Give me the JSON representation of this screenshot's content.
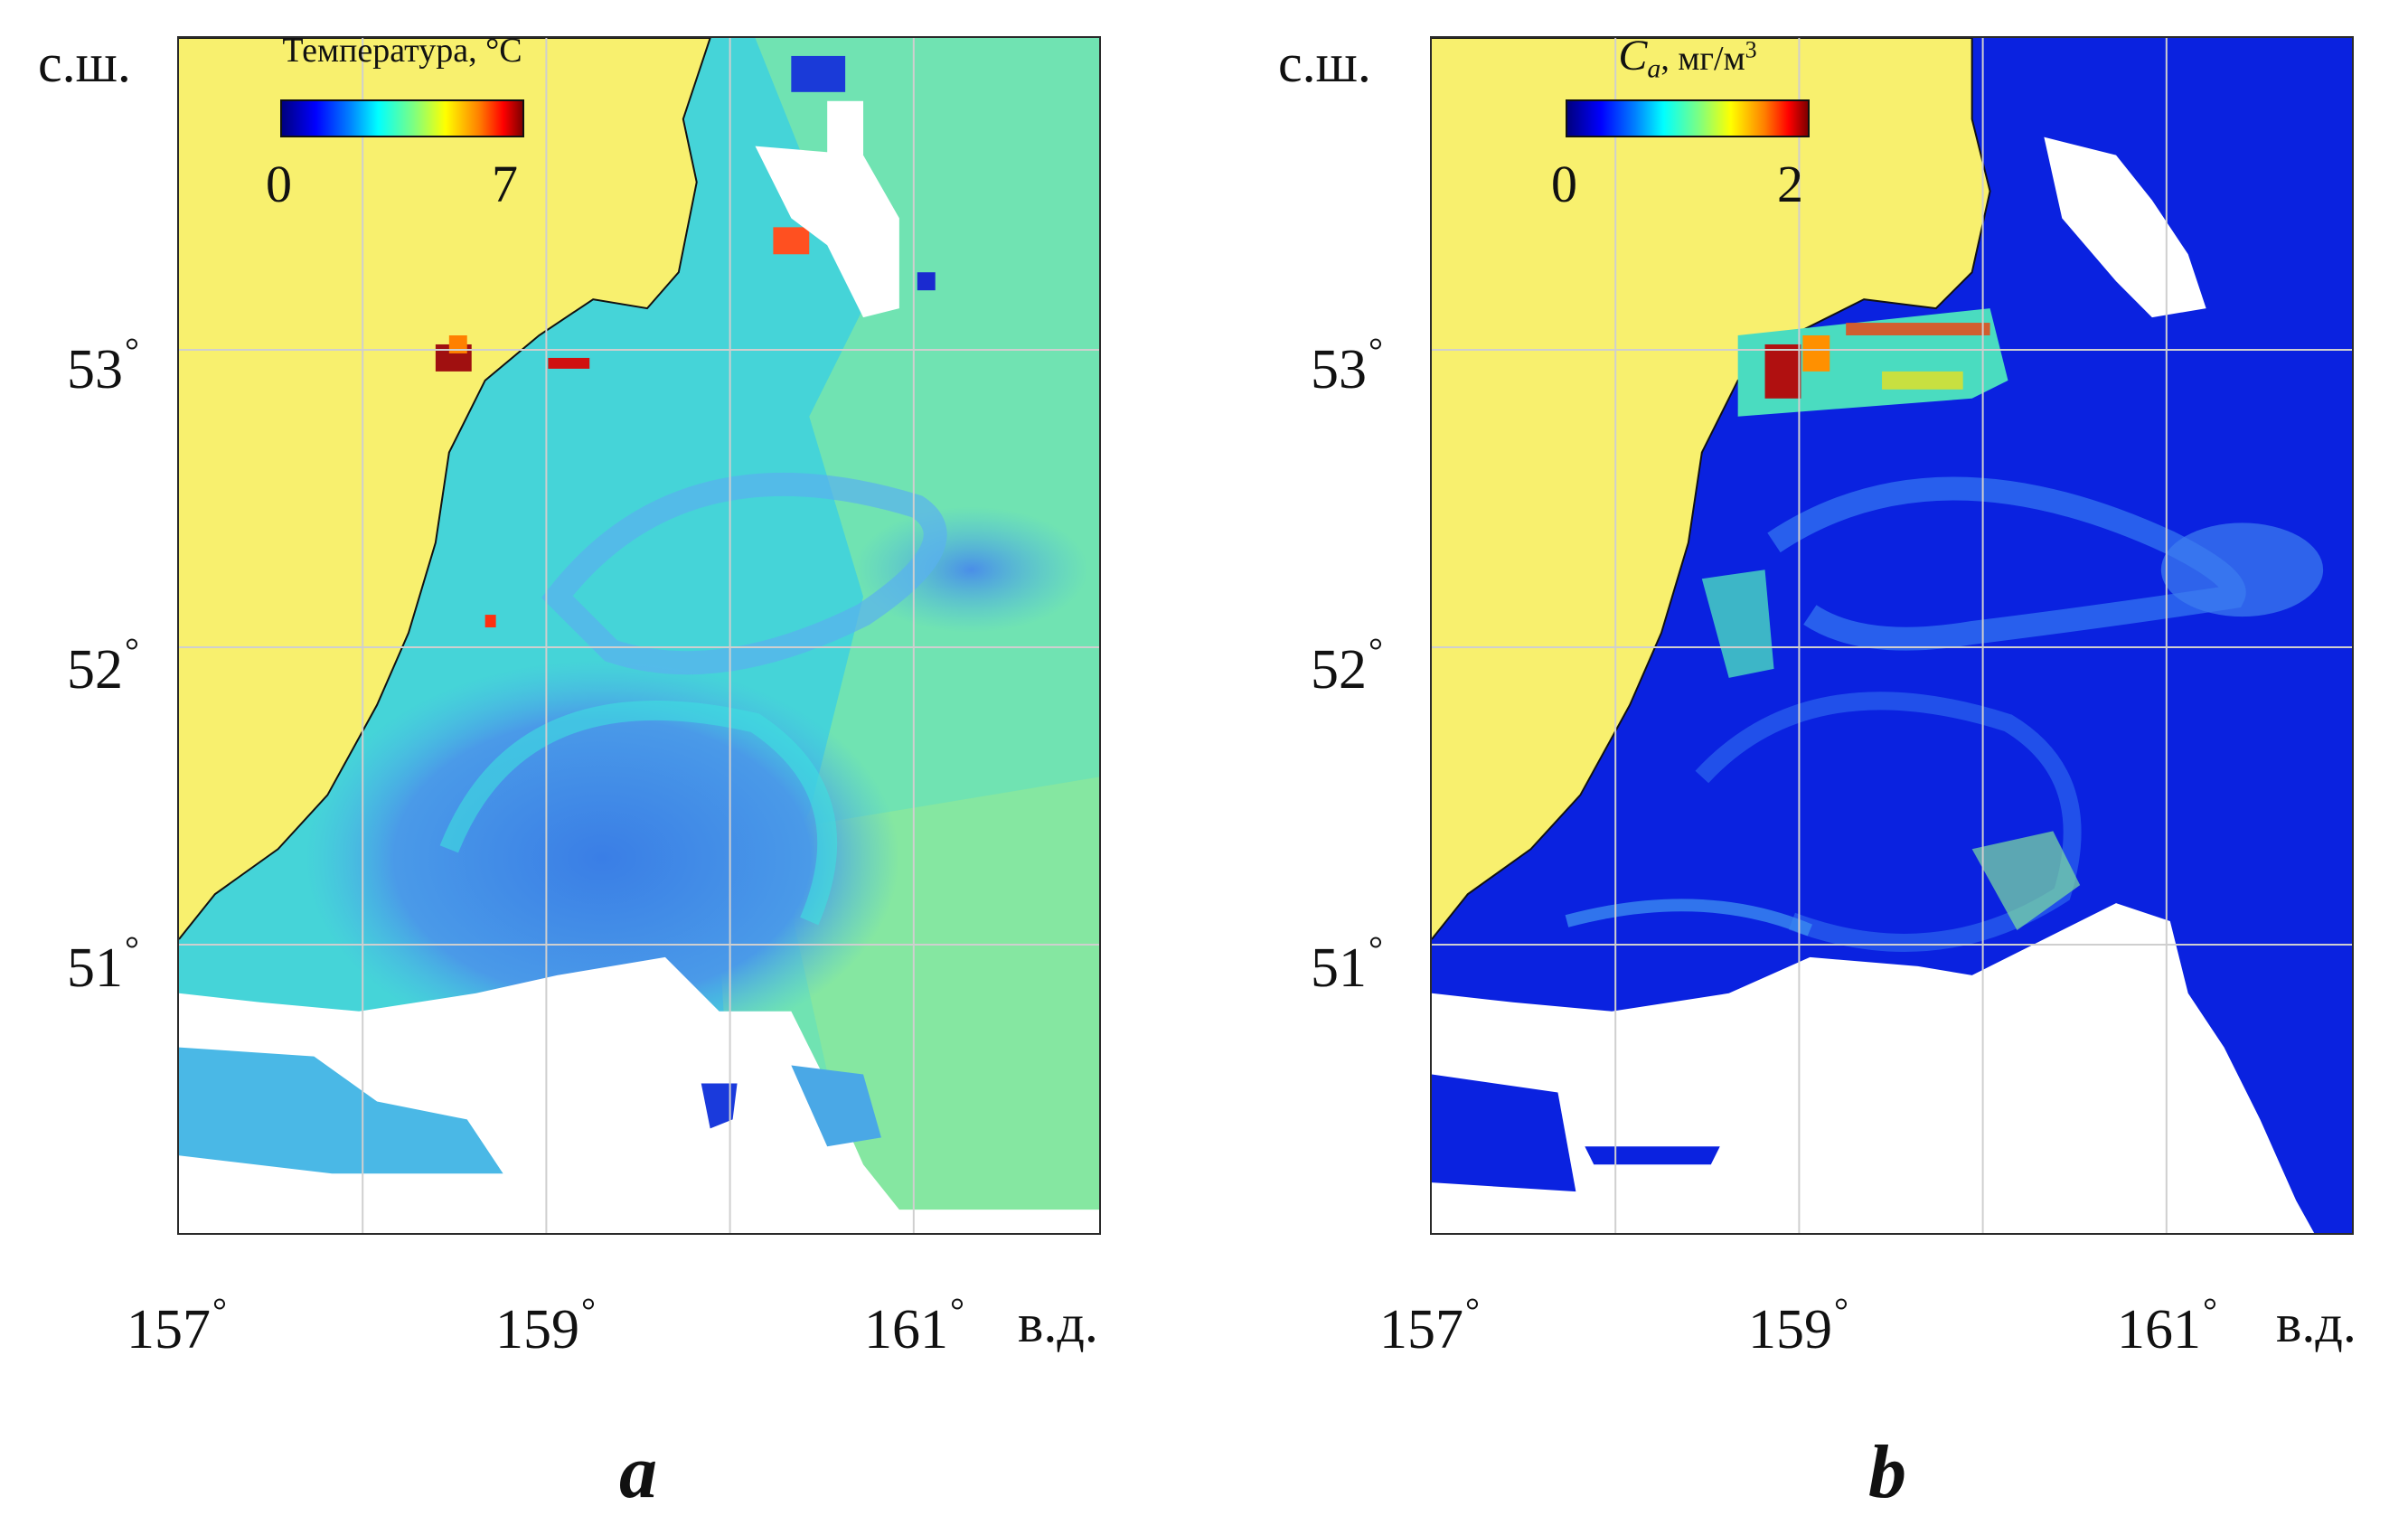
{
  "panels": {
    "a": {
      "letter": "a",
      "colorbar": {
        "title": "Температура, °С",
        "min": "0",
        "max": "7"
      }
    },
    "b": {
      "letter": "b",
      "colorbar": {
        "symbol": "C",
        "subscript": "a",
        "unit": ", мг/м",
        "unit_power": "3",
        "min": "0",
        "max": "2"
      }
    }
  },
  "axes": {
    "lat_axis_name": "с.ш.",
    "lon_axis_name": "в.д.",
    "lat_ticks": [
      "53",
      "52",
      "51"
    ],
    "lon_ticks": [
      "157",
      "159",
      "161"
    ],
    "degree_symbol": "°"
  },
  "colors": {
    "land": "#f8f06e",
    "no_data": "#ffffff",
    "temp_background": "#3de0cf",
    "chl_background": "#0a1fe0",
    "grid": "#d0d0d0"
  }
}
